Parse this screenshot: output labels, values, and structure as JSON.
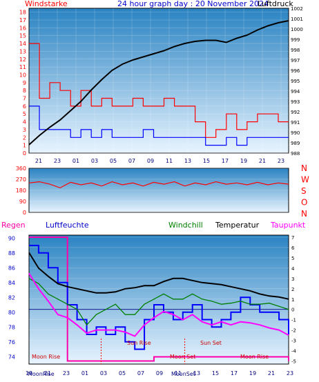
{
  "chart_data": [
    {
      "type": "line",
      "panel": "wind-pressure",
      "title": "24 hour graph day : 20 November 2024",
      "left_label": "Windstarke",
      "right_label": "Luftdruck",
      "x_ticks": [
        "21",
        "23",
        "01",
        "03",
        "05",
        "07",
        "09",
        "11",
        "13",
        "15",
        "17",
        "19",
        "21",
        "23"
      ],
      "y_left_ticks": [
        0,
        1,
        2,
        3,
        4,
        5,
        6,
        7,
        8,
        9,
        10,
        11,
        12,
        13,
        14,
        15,
        16,
        17,
        18
      ],
      "y_right_ticks": [
        988,
        989,
        990,
        991,
        992,
        993,
        994,
        995,
        996,
        997,
        998,
        999,
        1000,
        1001,
        1002
      ],
      "ylim_left": [
        0,
        18.5
      ],
      "ylim_right": [
        988,
        1002
      ],
      "series": [
        {
          "name": "Luftdruck",
          "color": "#000000",
          "hours": [
            20,
            21,
            22,
            23,
            24,
            25,
            26,
            27,
            28,
            29,
            30,
            31,
            32,
            33,
            34,
            35,
            36,
            37,
            38,
            39,
            40,
            41,
            42,
            43,
            44,
            45
          ],
          "values": [
            988.8,
            989.7,
            990.5,
            991.2,
            992.1,
            993.0,
            994.1,
            995.1,
            996.0,
            996.6,
            997.0,
            997.3,
            997.6,
            997.9,
            998.3,
            998.6,
            998.8,
            998.9,
            998.9,
            998.7,
            999.1,
            999.4,
            999.9,
            1000.3,
            1000.6,
            1000.8
          ]
        },
        {
          "color": "#ff0000",
          "hours": [
            20,
            21,
            22,
            23,
            24,
            25,
            26,
            27,
            28,
            29,
            30,
            31,
            32,
            33,
            34,
            35,
            36,
            37,
            38,
            39,
            40,
            41,
            42,
            43,
            44,
            45
          ],
          "values": [
            14,
            7,
            9,
            8,
            6,
            8,
            6,
            7,
            6,
            6,
            7,
            6,
            6,
            7,
            6,
            6,
            4,
            2,
            3,
            5,
            3,
            4,
            5,
            5,
            4,
            4
          ]
        },
        {
          "color": "#0000ff",
          "hours": [
            20,
            21,
            22,
            23,
            24,
            25,
            26,
            27,
            28,
            29,
            30,
            31,
            32,
            33,
            34,
            35,
            36,
            37,
            38,
            39,
            40,
            41,
            42,
            43,
            44,
            45
          ],
          "values": [
            6,
            3,
            3,
            3,
            2,
            3,
            2,
            3,
            2,
            2,
            2,
            3,
            2,
            2,
            2,
            2,
            2,
            1,
            1,
            2,
            1,
            2,
            2,
            2,
            2,
            2
          ]
        }
      ]
    },
    {
      "type": "line",
      "panel": "wind-direction",
      "y_ticks": [
        0,
        90,
        180,
        270,
        360
      ],
      "ylim": [
        0,
        360
      ],
      "right_labels": [
        "N",
        "W",
        "S",
        "O",
        "N"
      ],
      "series": [
        {
          "color": "#ff0000",
          "hours": [
            20,
            21,
            22,
            23,
            24,
            25,
            26,
            27,
            28,
            29,
            30,
            31,
            32,
            33,
            34,
            35,
            36,
            37,
            38,
            39,
            40,
            41,
            42,
            43,
            44,
            45
          ],
          "values": [
            240,
            250,
            230,
            200,
            245,
            225,
            240,
            215,
            250,
            225,
            240,
            215,
            245,
            230,
            250,
            215,
            240,
            225,
            250,
            230,
            240,
            225,
            245,
            225,
            240,
            230
          ]
        }
      ]
    },
    {
      "type": "line",
      "panel": "humidity-temperature",
      "left_title": "Regen",
      "series_labels": [
        "Luftfeuchte",
        "Windchill",
        "Temperatur",
        "Taupunkt"
      ],
      "y_left_ticks": [
        74,
        76,
        78,
        80,
        82,
        84,
        86,
        88,
        90
      ],
      "ylim_left": [
        73,
        90.4
      ],
      "y_right_ticks": [
        -5,
        -4,
        -3,
        -2,
        -1,
        0,
        1,
        2,
        3,
        4,
        5,
        6,
        7
      ],
      "ylim_right": [
        -5.3,
        7.2
      ],
      "x_ticks": [
        "19",
        "21",
        "23",
        "01",
        "03",
        "05",
        "07",
        "09",
        "11",
        "13",
        "15",
        "17",
        "19",
        "21",
        "23"
      ],
      "annotations": [
        "Moon Rise",
        "Sun Rise",
        "Sun Set",
        "Moon Set",
        "Moon Rise"
      ],
      "bottom_labels": [
        "Moon",
        "Rise",
        "Moon",
        "Set"
      ],
      "series": [
        {
          "name": "Luftfeuchte",
          "color": "#0000ff",
          "hours": [
            18,
            19,
            20,
            21,
            22,
            23,
            24,
            25,
            26,
            27,
            28,
            29,
            30,
            31,
            32,
            33,
            34,
            35,
            36,
            37,
            38,
            39,
            40,
            41,
            42,
            43,
            44,
            45
          ],
          "values": [
            89,
            88,
            86,
            84,
            81,
            79,
            77,
            78,
            77,
            78,
            76,
            75,
            79,
            81,
            80,
            79,
            80,
            81,
            79,
            78,
            79,
            80,
            82,
            81,
            80,
            80,
            79,
            77
          ]
        },
        {
          "name": "Windchill",
          "color": "#008000",
          "hours": [
            18,
            19,
            20,
            21,
            22,
            23,
            24,
            25,
            26,
            27,
            28,
            29,
            30,
            31,
            32,
            33,
            34,
            35,
            36,
            37,
            38,
            39,
            40,
            41,
            42,
            43,
            44,
            45
          ],
          "values": [
            3.0,
            2.5,
            1.5,
            1.0,
            0.5,
            0.0,
            -1.5,
            -0.5,
            0.0,
            0.5,
            -0.5,
            -0.5,
            0.5,
            1.0,
            1.5,
            1.0,
            1.0,
            1.5,
            1.0,
            0.8,
            0.5,
            0.6,
            0.8,
            0.5,
            0.5,
            0.6,
            0.3,
            0.0
          ]
        },
        {
          "name": "Temperatur",
          "color": "#000000",
          "hours": [
            18,
            19,
            20,
            21,
            22,
            23,
            24,
            25,
            26,
            27,
            28,
            29,
            30,
            31,
            32,
            33,
            34,
            35,
            36,
            37,
            38,
            39,
            40,
            41,
            42,
            43,
            44,
            45
          ],
          "values": [
            5.5,
            4.0,
            3.2,
            2.5,
            2.2,
            2.0,
            1.8,
            1.6,
            1.6,
            1.7,
            2.0,
            2.1,
            2.3,
            2.3,
            2.7,
            3.0,
            3.0,
            2.8,
            2.6,
            2.5,
            2.4,
            2.2,
            2.0,
            1.8,
            1.5,
            1.3,
            1.2,
            1.0
          ]
        },
        {
          "name": "Taupunkt",
          "color": "#ff00ff",
          "hours": [
            18,
            19,
            20,
            21,
            22,
            23,
            24,
            25,
            26,
            27,
            28,
            29,
            30,
            31,
            32,
            33,
            34,
            35,
            36,
            37,
            38,
            39,
            40,
            41,
            42,
            43,
            44,
            45
          ],
          "values": [
            3.5,
            2.0,
            0.8,
            -0.5,
            -0.8,
            -1.5,
            -2.3,
            -2.0,
            -2.0,
            -2.0,
            -2.2,
            -2.6,
            -1.5,
            -0.8,
            -0.2,
            -0.5,
            -1.0,
            -0.5,
            -1.2,
            -1.5,
            -1.2,
            -1.5,
            -1.2,
            -1.3,
            -1.5,
            -1.8,
            -2.0,
            -2.5
          ]
        },
        {
          "name": "Regen",
          "color": "#ff00aa",
          "hours": [
            18,
            19,
            20,
            21,
            22,
            23,
            24,
            25,
            26,
            27,
            28,
            29,
            30,
            31,
            32,
            33,
            34,
            35,
            36,
            37,
            38,
            39,
            40,
            41,
            42,
            43,
            44,
            45
          ],
          "values": [
            7.0,
            7.0,
            7.0,
            7.0,
            -5.0,
            -5.0,
            -5.0,
            -5.0,
            -5.0,
            -5.0,
            -5.0,
            -5.0,
            -5.0,
            -4.6,
            -4.6,
            -4.6,
            -4.6,
            -4.6,
            -4.6,
            -4.6,
            -4.6,
            -4.6,
            -4.6,
            -4.6,
            -4.6,
            -4.6,
            -4.6,
            -5.0
          ]
        }
      ]
    }
  ]
}
